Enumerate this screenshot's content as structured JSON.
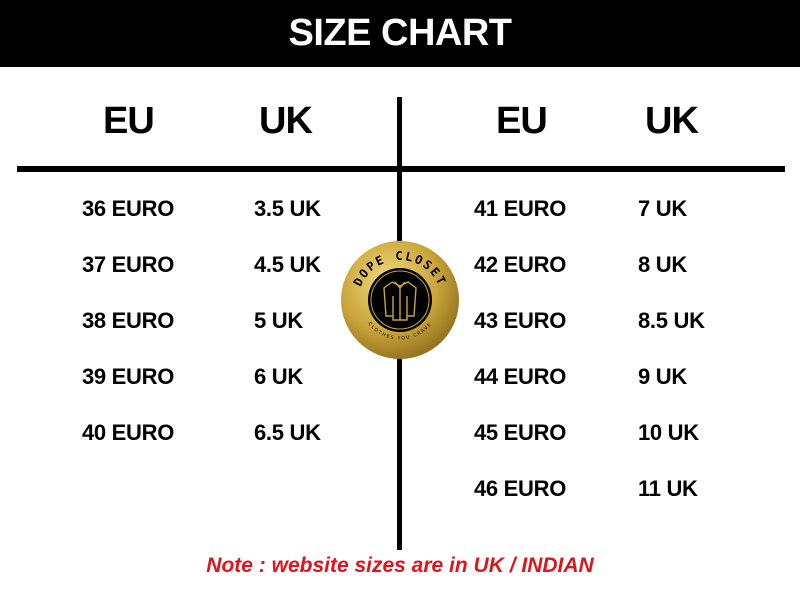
{
  "title": "SIZE CHART",
  "left": {
    "headers": [
      "EU",
      "UK"
    ],
    "rows": [
      [
        "36 EURO",
        "3.5 UK"
      ],
      [
        "37 EURO",
        "4.5 UK"
      ],
      [
        "38 EURO",
        "5 UK"
      ],
      [
        "39 EURO",
        "6 UK"
      ],
      [
        "40 EURO",
        "6.5 UK"
      ]
    ]
  },
  "right": {
    "headers": [
      "EU",
      "UK"
    ],
    "rows": [
      [
        "41 EURO",
        "7 UK"
      ],
      [
        "42 EURO",
        "8 UK"
      ],
      [
        "43 EURO",
        "8.5 UK"
      ],
      [
        "44 EURO",
        "9 UK"
      ],
      [
        "45 EURO",
        "10 UK"
      ],
      [
        "46 EURO",
        "11 UK"
      ]
    ]
  },
  "logo": {
    "name": "DOPE CLOSET",
    "tagline": "CLOTHES YOU CRAVE",
    "icon": "shirt-icon",
    "gold": "#c9a43a"
  },
  "note": "Note : website sizes are in UK / INDIAN",
  "colors": {
    "header_bg": "#000000",
    "note": "#e0141b"
  }
}
